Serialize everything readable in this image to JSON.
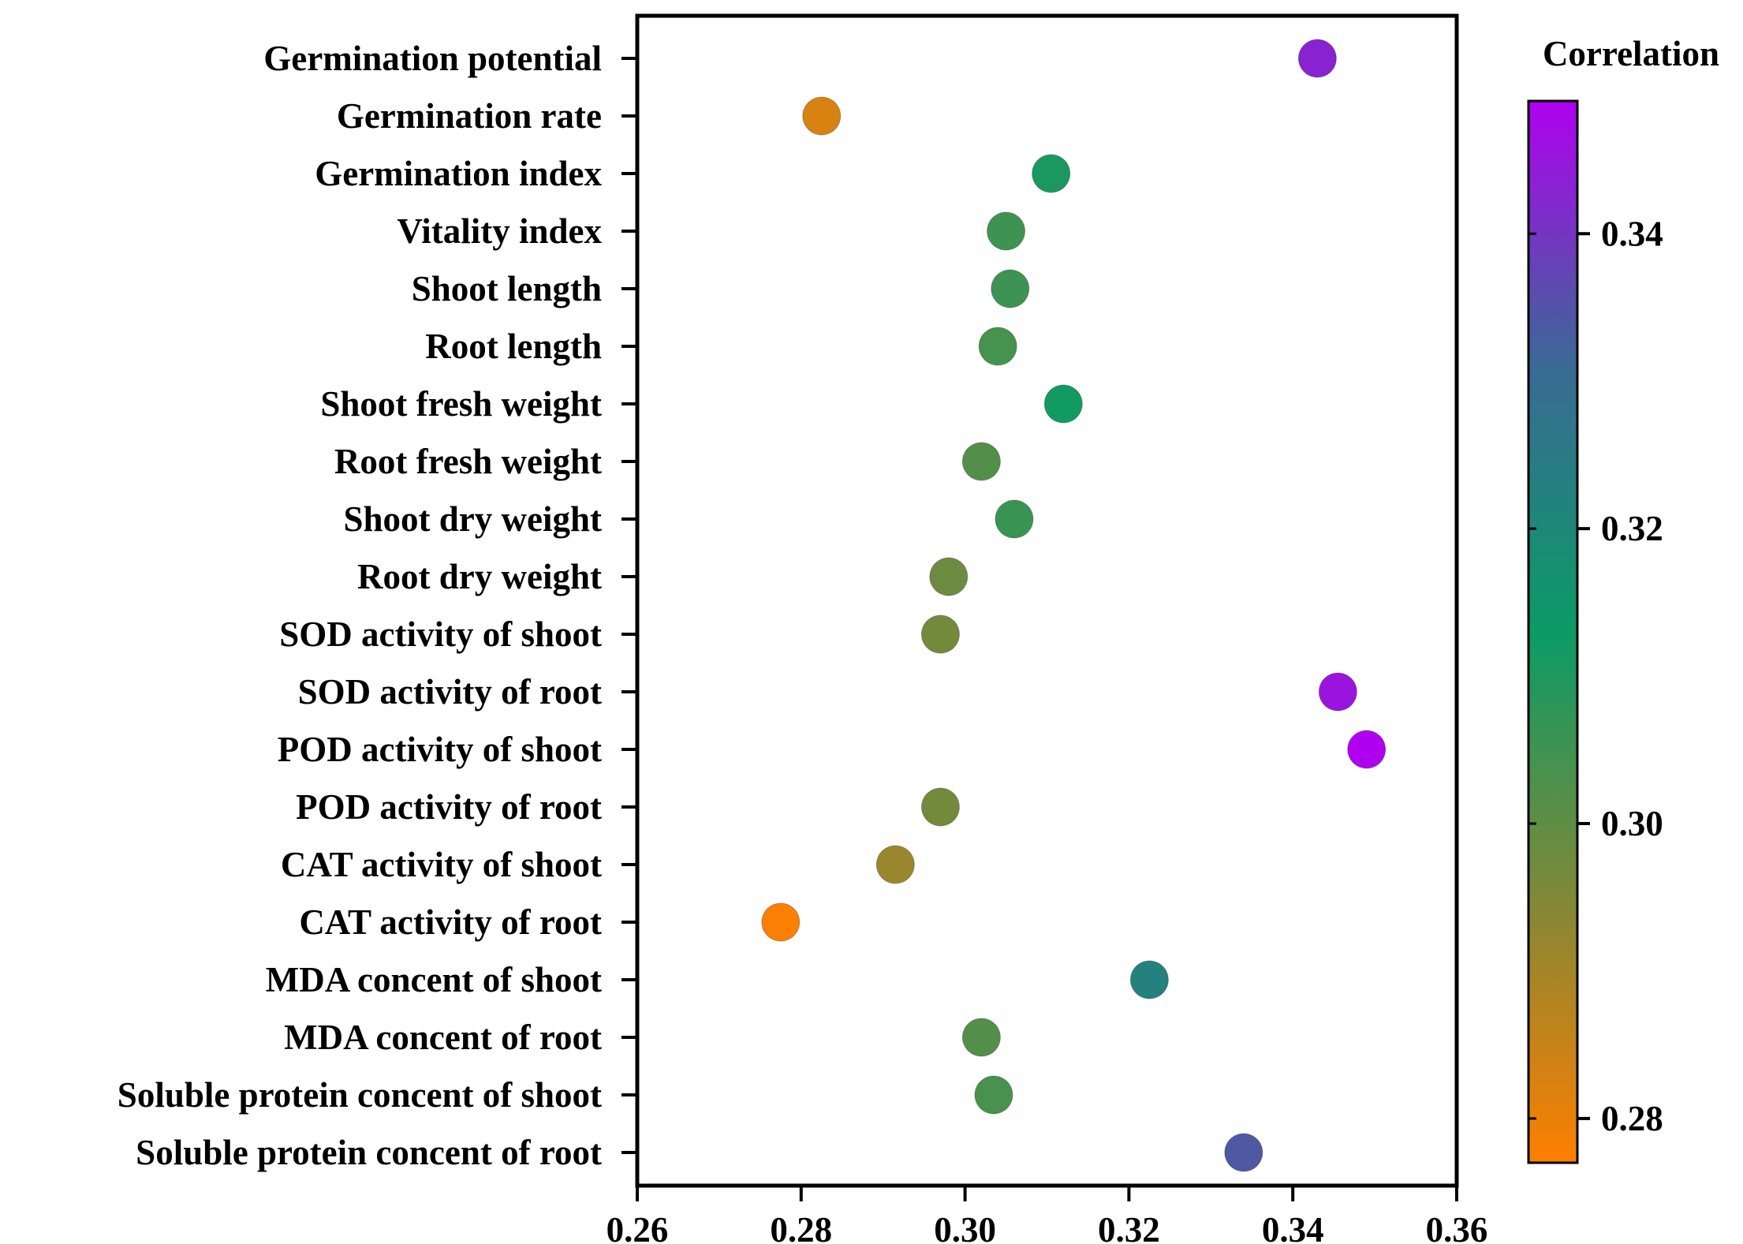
{
  "chart_data": {
    "type": "scatter",
    "title": "",
    "xlabel": "",
    "ylabel": "",
    "xlim": [
      0.26,
      0.36
    ],
    "x_ticks": [
      "0.26",
      "0.28",
      "0.30",
      "0.32",
      "0.34",
      "0.36"
    ],
    "categories": [
      "Germination potential",
      "Germination rate",
      "Germination index",
      "Vitality index",
      "Shoot length",
      "Root length",
      "Shoot fresh weight",
      "Root fresh weight",
      "Shoot dry weight",
      "Root dry weight",
      "SOD activity of shoot",
      "SOD activity of root",
      "POD activity of shoot",
      "POD activity of root",
      "CAT activity of shoot",
      "CAT activity of root",
      "MDA concent of shoot",
      "MDA concent of root",
      "Soluble protein concent of shoot",
      "Soluble protein concent of root"
    ],
    "values": [
      0.343,
      0.2825,
      0.3105,
      0.305,
      0.3055,
      0.304,
      0.312,
      0.302,
      0.306,
      0.298,
      0.297,
      0.3455,
      0.349,
      0.297,
      0.2915,
      0.2775,
      0.3225,
      0.302,
      0.3035,
      0.334
    ],
    "grid": false,
    "colorbar": {
      "title": "Correlation",
      "range": [
        0.277,
        0.349
      ],
      "ticks": [
        "0.28",
        "0.30",
        "0.32",
        "0.34"
      ],
      "colors": [
        "#ff7f00",
        "#808838",
        "#0b9b66",
        "#3a6a94",
        "#b000f0"
      ]
    }
  }
}
